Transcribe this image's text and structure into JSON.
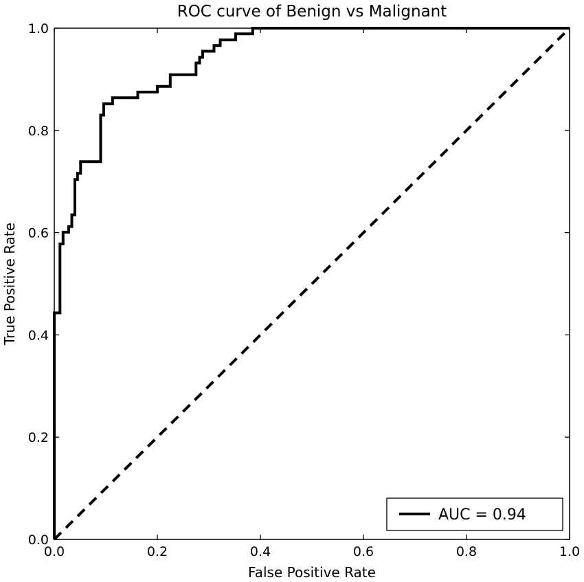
{
  "chart_data": {
    "type": "line",
    "title": "ROC curve of Benign vs Malignant",
    "xlabel": "False Positive Rate",
    "ylabel": "True Positive Rate",
    "xlim": [
      0.0,
      1.0
    ],
    "ylim": [
      0.0,
      1.0
    ],
    "x_ticks": [
      "0.0",
      "0.2",
      "0.4",
      "0.6",
      "0.8",
      "1.0"
    ],
    "y_ticks": [
      "0.0",
      "0.2",
      "0.4",
      "0.6",
      "0.8",
      "1.0"
    ],
    "grid": false,
    "legend": {
      "position": "bottom-right",
      "entries": [
        "AUC = 0.94"
      ]
    },
    "series": [
      {
        "name": "AUC = 0.94",
        "style": "solid",
        "color": "#000000",
        "points": [
          [
            0.0,
            0.0
          ],
          [
            0.0,
            0.443
          ],
          [
            0.011,
            0.443
          ],
          [
            0.011,
            0.578
          ],
          [
            0.017,
            0.578
          ],
          [
            0.017,
            0.601
          ],
          [
            0.028,
            0.601
          ],
          [
            0.028,
            0.612
          ],
          [
            0.034,
            0.612
          ],
          [
            0.034,
            0.635
          ],
          [
            0.04,
            0.635
          ],
          [
            0.04,
            0.704
          ],
          [
            0.045,
            0.704
          ],
          [
            0.045,
            0.716
          ],
          [
            0.051,
            0.716
          ],
          [
            0.051,
            0.739
          ],
          [
            0.09,
            0.739
          ],
          [
            0.09,
            0.83
          ],
          [
            0.096,
            0.83
          ],
          [
            0.096,
            0.852
          ],
          [
            0.113,
            0.852
          ],
          [
            0.113,
            0.864
          ],
          [
            0.162,
            0.864
          ],
          [
            0.162,
            0.875
          ],
          [
            0.2,
            0.875
          ],
          [
            0.2,
            0.886
          ],
          [
            0.225,
            0.886
          ],
          [
            0.225,
            0.909
          ],
          [
            0.275,
            0.909
          ],
          [
            0.275,
            0.932
          ],
          [
            0.282,
            0.932
          ],
          [
            0.282,
            0.943
          ],
          [
            0.288,
            0.943
          ],
          [
            0.288,
            0.955
          ],
          [
            0.31,
            0.955
          ],
          [
            0.31,
            0.966
          ],
          [
            0.322,
            0.966
          ],
          [
            0.322,
            0.977
          ],
          [
            0.352,
            0.977
          ],
          [
            0.352,
            0.989
          ],
          [
            0.385,
            0.989
          ],
          [
            0.385,
            1.0
          ],
          [
            1.0,
            1.0
          ]
        ]
      },
      {
        "name": "",
        "style": "dashed",
        "color": "#000000",
        "points": [
          [
            0.0,
            0.0
          ],
          [
            1.0,
            1.0
          ]
        ]
      }
    ]
  }
}
